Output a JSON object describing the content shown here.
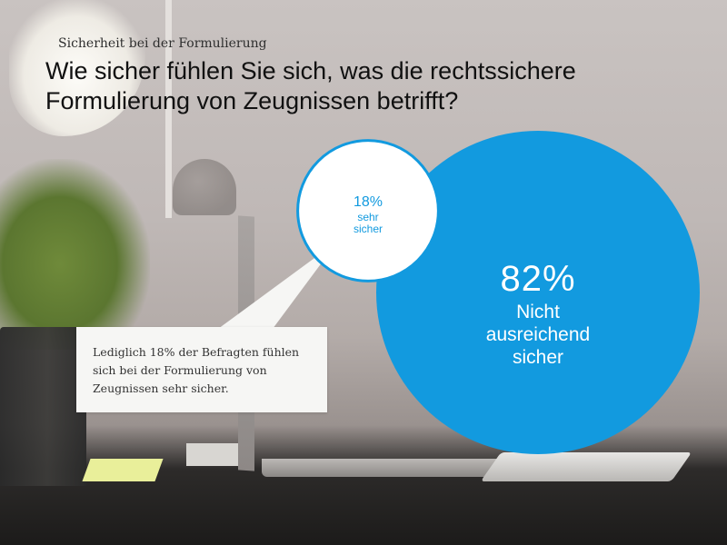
{
  "header": {
    "subtitle": "Sicherheit bei der Formulierung",
    "title": "Wie sicher fühlen Sie sich, was die rechtssichere Formulierung von Zeugnissen betrifft?"
  },
  "colors": {
    "accent": "#129adf",
    "white": "#ffffff",
    "callout_bg": "#f6f6f4"
  },
  "chart_data": {
    "type": "pie",
    "slices": [
      {
        "value": 82,
        "value_label": "82%",
        "label_lines": [
          "Nicht",
          "ausreichend",
          "sicher"
        ]
      },
      {
        "value": 18,
        "value_label": "18%",
        "label_lines": [
          "sehr",
          "sicher"
        ]
      }
    ]
  },
  "callout": {
    "text": "Lediglich 18% der Befragten fühlen sich bei der Formulierung von Zeugnissen sehr sicher."
  }
}
